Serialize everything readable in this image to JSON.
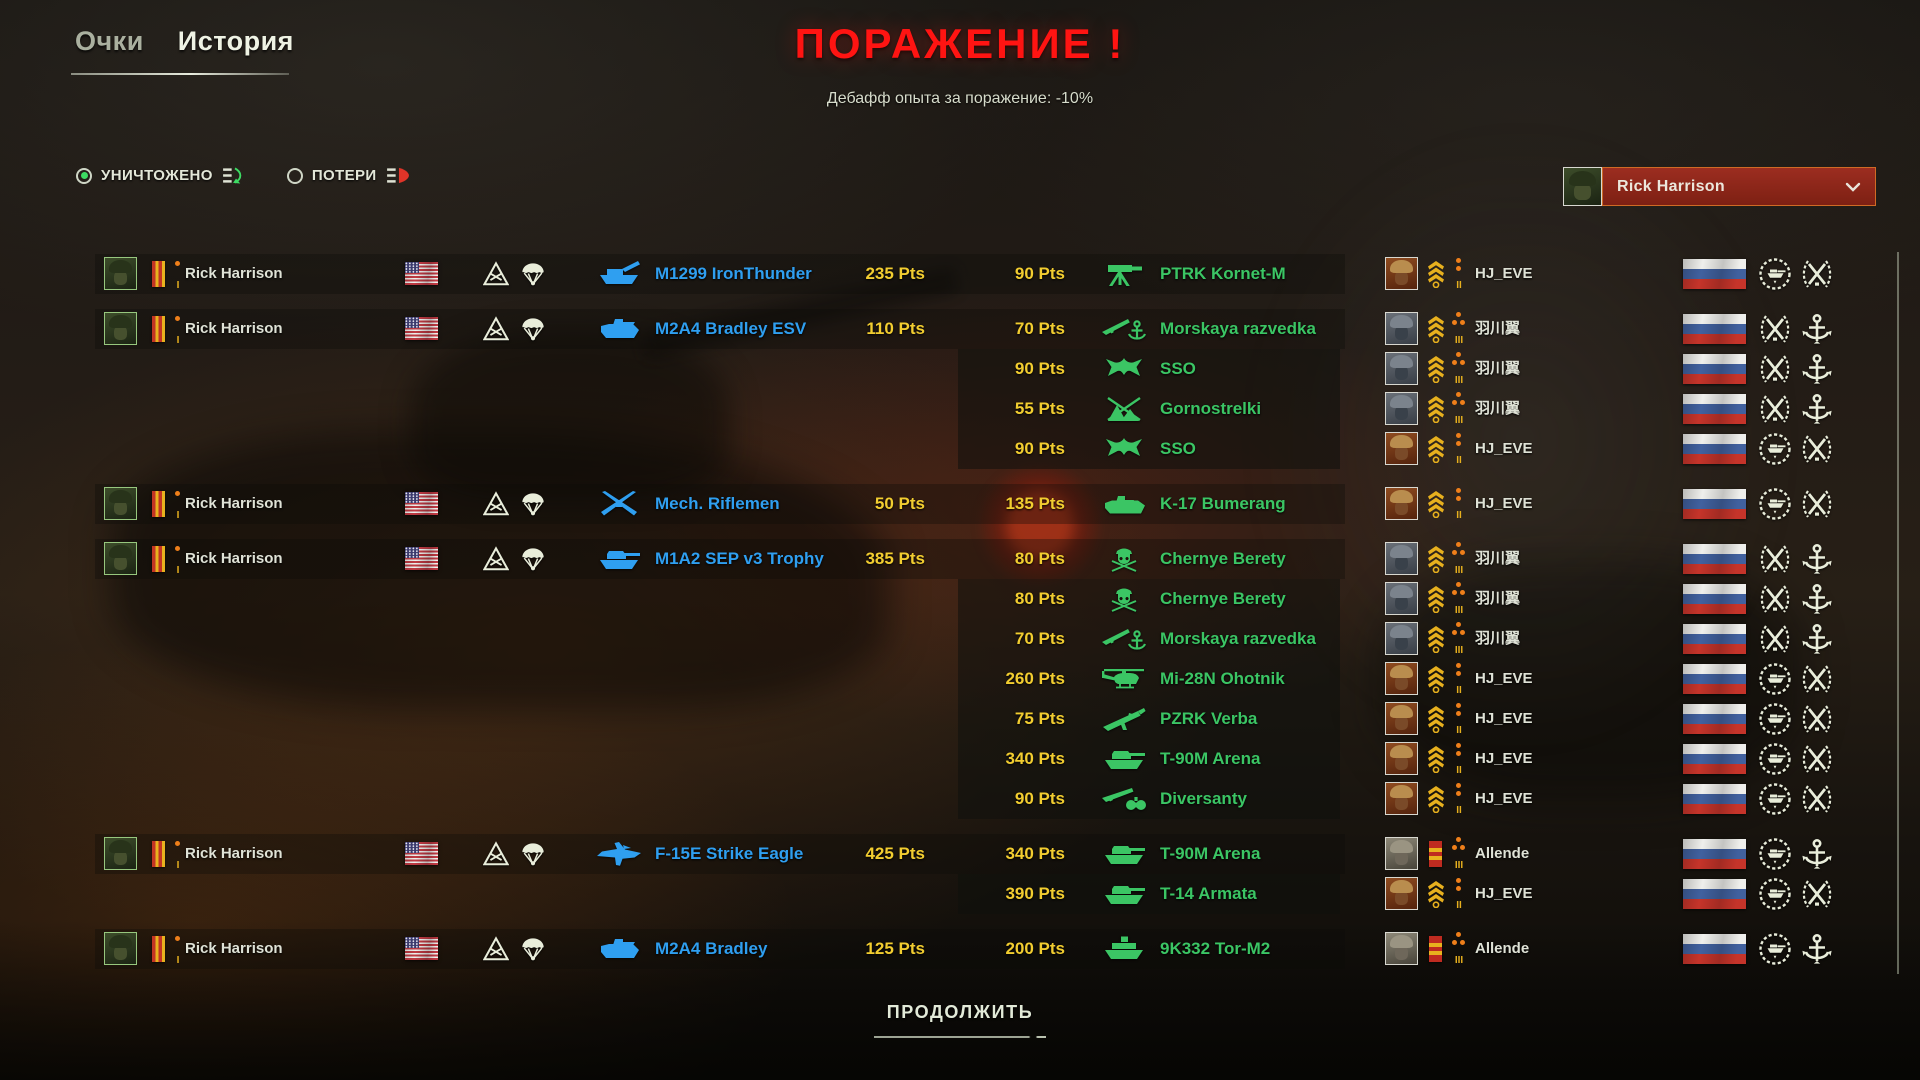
{
  "tabs": {
    "points": "Очки",
    "history": "История",
    "active": "history"
  },
  "result": {
    "title": "ПОРАЖЕНИЕ !",
    "subtitle": "Дебафф опыта за поражение: -10%"
  },
  "filters": {
    "destroyed": {
      "label": "УНИЧТОЖЕНО",
      "selected": true,
      "icon": "destroyed-list-icon"
    },
    "losses": {
      "label": "ПОТЕРИ",
      "selected": false,
      "icon": "losses-list-icon"
    }
  },
  "player_dropdown": {
    "selected": "Rick Harrison",
    "avatar": "rick",
    "icon": "chevron-down-icon"
  },
  "continue_button": "ПРОДОЛЖИТЬ",
  "colors": {
    "defeat_red": "#ff1412",
    "pts_yellow": "#f2cd30",
    "ally_blue": "#2f9ff0",
    "enemy_green": "#3bc564",
    "gold": "#e7b01e",
    "dot_orange": "#ef7f1a",
    "destroy_green": "#3ddb63",
    "loss_red": "#e03428"
  },
  "rows": [
    {
      "group_start": true,
      "player": {
        "name": "Rick Harrison",
        "avatar": "rick",
        "rank_insignia": "ribbon-red-gold-stripes",
        "rank_dots": 1,
        "rank_numeral": "I",
        "flag": "us-flag-icon",
        "emblems": [
          "armored-division-icon",
          "airborne-icon"
        ]
      },
      "vehicle": {
        "name": "M1299 IronThunder",
        "icon": "spg-icon"
      },
      "player_pts": "235 Pts",
      "enemy_pts": "90 Pts",
      "enemy_unit": {
        "name": "PTRK Kornet-M",
        "icon": "atgm-icon"
      },
      "enemy": {
        "name": "HJ_EVE",
        "avatar": "hj",
        "rank_insignia": "chevrons-gold",
        "rank_dots": 2,
        "rank_numeral": "II",
        "flag": "ru-flag-icon",
        "emblems": [
          "tank-wreath-icon",
          "rifles-wreath-icon"
        ]
      }
    },
    {
      "group_start": true,
      "player": {
        "name": "Rick Harrison",
        "avatar": "rick",
        "rank_insignia": "ribbon-red-gold-stripes",
        "rank_dots": 1,
        "rank_numeral": "I",
        "flag": "us-flag-icon",
        "emblems": [
          "armored-division-icon",
          "airborne-icon"
        ]
      },
      "vehicle": {
        "name": "M2A4 Bradley ESV",
        "icon": "ifv-icon"
      },
      "player_pts": "110 Pts",
      "enemy_pts": "70 Pts",
      "enemy_unit": {
        "name": "Morskaya razvedka",
        "icon": "marine-recon-icon"
      },
      "enemy": {
        "name": "羽川翼",
        "avatar": "yu",
        "rank_insignia": "chevrons-gold",
        "rank_dots": 3,
        "rank_numeral": "III",
        "flag": "ru-flag-icon",
        "emblems": [
          "rifles-wreath-icon",
          "anchor-icon"
        ]
      }
    },
    {
      "group_start": false,
      "player": null,
      "enemy_pts": "90 Pts",
      "enemy_unit": {
        "name": "SSO",
        "icon": "sso-icon"
      },
      "enemy": {
        "name": "羽川翼",
        "avatar": "yu",
        "rank_insignia": "chevrons-gold",
        "rank_dots": 3,
        "rank_numeral": "III",
        "flag": "ru-flag-icon",
        "emblems": [
          "rifles-wreath-icon",
          "anchor-icon"
        ]
      }
    },
    {
      "group_start": false,
      "player": null,
      "enemy_pts": "55 Pts",
      "enemy_unit": {
        "name": "Gornostrelki",
        "icon": "mountain-icon"
      },
      "enemy": {
        "name": "羽川翼",
        "avatar": "yu",
        "rank_insignia": "chevrons-gold",
        "rank_dots": 3,
        "rank_numeral": "III",
        "flag": "ru-flag-icon",
        "emblems": [
          "rifles-wreath-icon",
          "anchor-icon"
        ]
      }
    },
    {
      "group_start": false,
      "player": null,
      "enemy_pts": "90 Pts",
      "enemy_unit": {
        "name": "SSO",
        "icon": "sso-icon"
      },
      "enemy": {
        "name": "HJ_EVE",
        "avatar": "hj",
        "rank_insignia": "chevrons-gold",
        "rank_dots": 2,
        "rank_numeral": "II",
        "flag": "ru-flag-icon",
        "emblems": [
          "tank-wreath-icon",
          "rifles-wreath-icon"
        ]
      }
    },
    {
      "group_start": true,
      "player": {
        "name": "Rick Harrison",
        "avatar": "rick",
        "rank_insignia": "ribbon-red-gold-stripes",
        "rank_dots": 1,
        "rank_numeral": "I",
        "flag": "us-flag-icon",
        "emblems": [
          "armored-division-icon",
          "airborne-icon"
        ]
      },
      "vehicle": {
        "name": "Mech. Riflemen",
        "icon": "infantry-icon"
      },
      "player_pts": "50 Pts",
      "enemy_pts": "135 Pts",
      "enemy_unit": {
        "name": "K-17 Bumerang",
        "icon": "apc-icon"
      },
      "enemy": {
        "name": "HJ_EVE",
        "avatar": "hj",
        "rank_insignia": "chevrons-gold",
        "rank_dots": 2,
        "rank_numeral": "II",
        "flag": "ru-flag-icon",
        "emblems": [
          "tank-wreath-icon",
          "rifles-wreath-icon"
        ]
      }
    },
    {
      "group_start": true,
      "player": {
        "name": "Rick Harrison",
        "avatar": "rick",
        "rank_insignia": "ribbon-red-gold-stripes",
        "rank_dots": 1,
        "rank_numeral": "I",
        "flag": "us-flag-icon",
        "emblems": [
          "armored-division-icon",
          "airborne-icon"
        ]
      },
      "vehicle": {
        "name": "M1A2 SEP v3 Trophy",
        "icon": "tank-icon"
      },
      "player_pts": "385 Pts",
      "enemy_pts": "80 Pts",
      "enemy_unit": {
        "name": "Chernye Berety",
        "icon": "beret-skull-icon"
      },
      "enemy": {
        "name": "羽川翼",
        "avatar": "yu",
        "rank_insignia": "chevrons-gold",
        "rank_dots": 3,
        "rank_numeral": "III",
        "flag": "ru-flag-icon",
        "emblems": [
          "rifles-wreath-icon",
          "anchor-icon"
        ]
      }
    },
    {
      "group_start": false,
      "player": null,
      "enemy_pts": "80 Pts",
      "enemy_unit": {
        "name": "Chernye Berety",
        "icon": "beret-skull-icon"
      },
      "enemy": {
        "name": "羽川翼",
        "avatar": "yu",
        "rank_insignia": "chevrons-gold",
        "rank_dots": 3,
        "rank_numeral": "III",
        "flag": "ru-flag-icon",
        "emblems": [
          "rifles-wreath-icon",
          "anchor-icon"
        ]
      }
    },
    {
      "group_start": false,
      "player": null,
      "enemy_pts": "70 Pts",
      "enemy_unit": {
        "name": "Morskaya razvedka",
        "icon": "marine-recon-icon"
      },
      "enemy": {
        "name": "羽川翼",
        "avatar": "yu",
        "rank_insignia": "chevrons-gold",
        "rank_dots": 3,
        "rank_numeral": "III",
        "flag": "ru-flag-icon",
        "emblems": [
          "rifles-wreath-icon",
          "anchor-icon"
        ]
      }
    },
    {
      "group_start": false,
      "player": null,
      "enemy_pts": "260 Pts",
      "enemy_unit": {
        "name": "Mi-28N Ohotnik",
        "icon": "helicopter-icon"
      },
      "enemy": {
        "name": "HJ_EVE",
        "avatar": "hj",
        "rank_insignia": "chevrons-gold",
        "rank_dots": 2,
        "rank_numeral": "II",
        "flag": "ru-flag-icon",
        "emblems": [
          "tank-wreath-icon",
          "rifles-wreath-icon"
        ]
      }
    },
    {
      "group_start": false,
      "player": null,
      "enemy_pts": "75 Pts",
      "enemy_unit": {
        "name": "PZRK Verba",
        "icon": "manpads-icon"
      },
      "enemy": {
        "name": "HJ_EVE",
        "avatar": "hj",
        "rank_insignia": "chevrons-gold",
        "rank_dots": 2,
        "rank_numeral": "II",
        "flag": "ru-flag-icon",
        "emblems": [
          "tank-wreath-icon",
          "rifles-wreath-icon"
        ]
      }
    },
    {
      "group_start": false,
      "player": null,
      "enemy_pts": "340 Pts",
      "enemy_unit": {
        "name": "T-90M Arena",
        "icon": "tank-icon"
      },
      "enemy": {
        "name": "HJ_EVE",
        "avatar": "hj",
        "rank_insignia": "chevrons-gold",
        "rank_dots": 2,
        "rank_numeral": "II",
        "flag": "ru-flag-icon",
        "emblems": [
          "tank-wreath-icon",
          "rifles-wreath-icon"
        ]
      }
    },
    {
      "group_start": false,
      "player": null,
      "enemy_pts": "90 Pts",
      "enemy_unit": {
        "name": "Diversanty",
        "icon": "recon-binocs-icon"
      },
      "enemy": {
        "name": "HJ_EVE",
        "avatar": "hj",
        "rank_insignia": "chevrons-gold",
        "rank_dots": 2,
        "rank_numeral": "II",
        "flag": "ru-flag-icon",
        "emblems": [
          "tank-wreath-icon",
          "rifles-wreath-icon"
        ]
      }
    },
    {
      "group_start": true,
      "player": {
        "name": "Rick Harrison",
        "avatar": "rick",
        "rank_insignia": "ribbon-red-gold-stripes",
        "rank_dots": 1,
        "rank_numeral": "I",
        "flag": "us-flag-icon",
        "emblems": [
          "armored-division-icon",
          "airborne-icon"
        ]
      },
      "vehicle": {
        "name": "F-15E Strike Eagle",
        "icon": "jet-icon"
      },
      "player_pts": "425 Pts",
      "enemy_pts": "340 Pts",
      "enemy_unit": {
        "name": "T-90M Arena",
        "icon": "tank-icon"
      },
      "enemy": {
        "name": "Allende",
        "avatar": "allende",
        "rank_insignia": "ribbon-red-gold-bars",
        "rank_dots": 3,
        "rank_numeral": "III",
        "flag": "ru-flag-icon",
        "emblems": [
          "tank-wreath-icon",
          "anchor-icon"
        ]
      }
    },
    {
      "group_start": false,
      "player": null,
      "enemy_pts": "390 Pts",
      "enemy_unit": {
        "name": "T-14 Armata",
        "icon": "tank-icon"
      },
      "enemy": {
        "name": "HJ_EVE",
        "avatar": "hj",
        "rank_insignia": "chevrons-gold",
        "rank_dots": 2,
        "rank_numeral": "II",
        "flag": "ru-flag-icon",
        "emblems": [
          "tank-wreath-icon",
          "rifles-wreath-icon"
        ]
      }
    },
    {
      "group_start": true,
      "player": {
        "name": "Rick Harrison",
        "avatar": "rick",
        "rank_insignia": "ribbon-red-gold-stripes",
        "rank_dots": 1,
        "rank_numeral": "I",
        "flag": "us-flag-icon",
        "emblems": [
          "armored-division-icon",
          "airborne-icon"
        ]
      },
      "vehicle": {
        "name": "M2A4 Bradley",
        "icon": "ifv-icon"
      },
      "player_pts": "125 Pts",
      "enemy_pts": "200 Pts",
      "enemy_unit": {
        "name": "9K332 Tor-M2",
        "icon": "sam-icon"
      },
      "enemy": {
        "name": "Allende",
        "avatar": "allende",
        "rank_insignia": "ribbon-red-gold-bars",
        "rank_dots": 3,
        "rank_numeral": "III",
        "flag": "ru-flag-icon",
        "emblems": [
          "tank-wreath-icon",
          "anchor-icon"
        ]
      }
    }
  ]
}
